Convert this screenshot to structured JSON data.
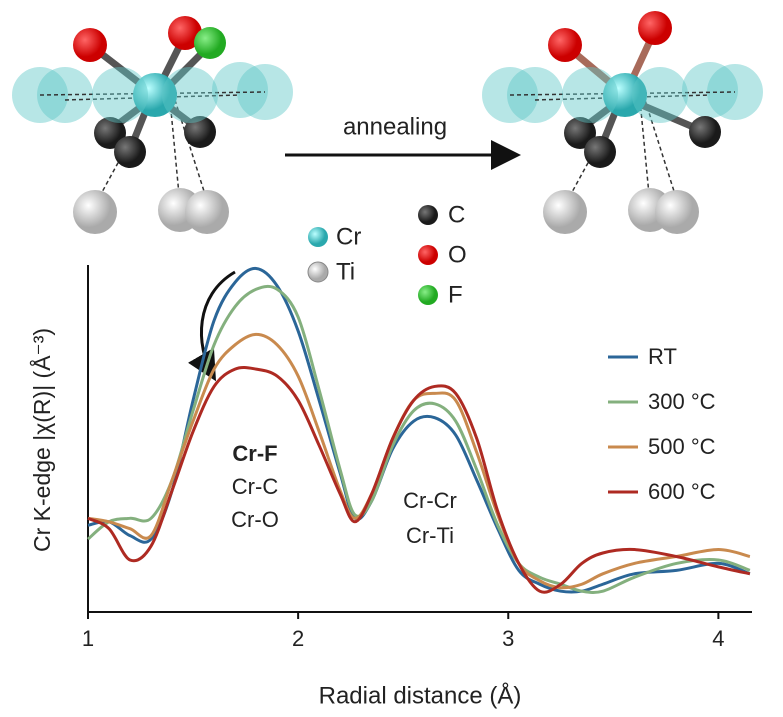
{
  "chart_data": {
    "type": "line",
    "xlabel": "Radial distance  (Å)",
    "ylabel": "Cr K-edge |χ(R)| (Å⁻³)",
    "xlim": [
      1,
      4.16
    ],
    "ylim": [
      0,
      1
    ],
    "xticks": [
      1,
      2,
      3,
      4
    ],
    "legend": "right",
    "x": [
      1.0,
      1.1,
      1.2,
      1.3,
      1.4,
      1.5,
      1.6,
      1.7,
      1.8,
      1.9,
      2.0,
      2.1,
      2.2,
      2.27,
      2.35,
      2.45,
      2.55,
      2.65,
      2.75,
      2.85,
      2.95,
      3.05,
      3.15,
      3.25,
      3.35,
      3.45,
      3.6,
      3.8,
      4.0,
      4.15
    ],
    "series": [
      {
        "name": "RT",
        "color": "#2b6698",
        "values": [
          0.25,
          0.26,
          0.22,
          0.21,
          0.35,
          0.61,
          0.84,
          0.95,
          0.99,
          0.94,
          0.81,
          0.61,
          0.4,
          0.27,
          0.32,
          0.47,
          0.55,
          0.56,
          0.51,
          0.38,
          0.24,
          0.12,
          0.08,
          0.06,
          0.06,
          0.08,
          0.11,
          0.12,
          0.14,
          0.11
        ]
      },
      {
        "name": "300 °C",
        "color": "#84b07e",
        "values": [
          0.21,
          0.26,
          0.27,
          0.27,
          0.38,
          0.58,
          0.77,
          0.88,
          0.93,
          0.93,
          0.85,
          0.64,
          0.41,
          0.28,
          0.32,
          0.48,
          0.58,
          0.6,
          0.55,
          0.41,
          0.25,
          0.14,
          0.1,
          0.08,
          0.06,
          0.06,
          0.1,
          0.14,
          0.15,
          0.12
        ]
      },
      {
        "name": "500 °C",
        "color": "#c98a4e",
        "values": [
          0.27,
          0.26,
          0.24,
          0.22,
          0.38,
          0.55,
          0.7,
          0.77,
          0.8,
          0.77,
          0.68,
          0.52,
          0.35,
          0.27,
          0.34,
          0.5,
          0.61,
          0.63,
          0.61,
          0.46,
          0.28,
          0.14,
          0.09,
          0.07,
          0.08,
          0.11,
          0.14,
          0.16,
          0.18,
          0.16
        ]
      },
      {
        "name": "600 °C",
        "color": "#ae2a22",
        "values": [
          0.27,
          0.24,
          0.15,
          0.19,
          0.35,
          0.52,
          0.65,
          0.7,
          0.7,
          0.68,
          0.61,
          0.48,
          0.34,
          0.26,
          0.34,
          0.5,
          0.61,
          0.65,
          0.63,
          0.5,
          0.29,
          0.14,
          0.06,
          0.08,
          0.14,
          0.17,
          0.18,
          0.16,
          0.13,
          0.11
        ]
      }
    ],
    "annotations": [
      "Cr-F",
      "Cr-C",
      "Cr-O",
      "Cr-Cr",
      "Cr-Ti"
    ],
    "schematic": {
      "arrow_label": "annealing",
      "atoms": [
        "Cr",
        "Ti",
        "C",
        "O",
        "F"
      ]
    }
  }
}
